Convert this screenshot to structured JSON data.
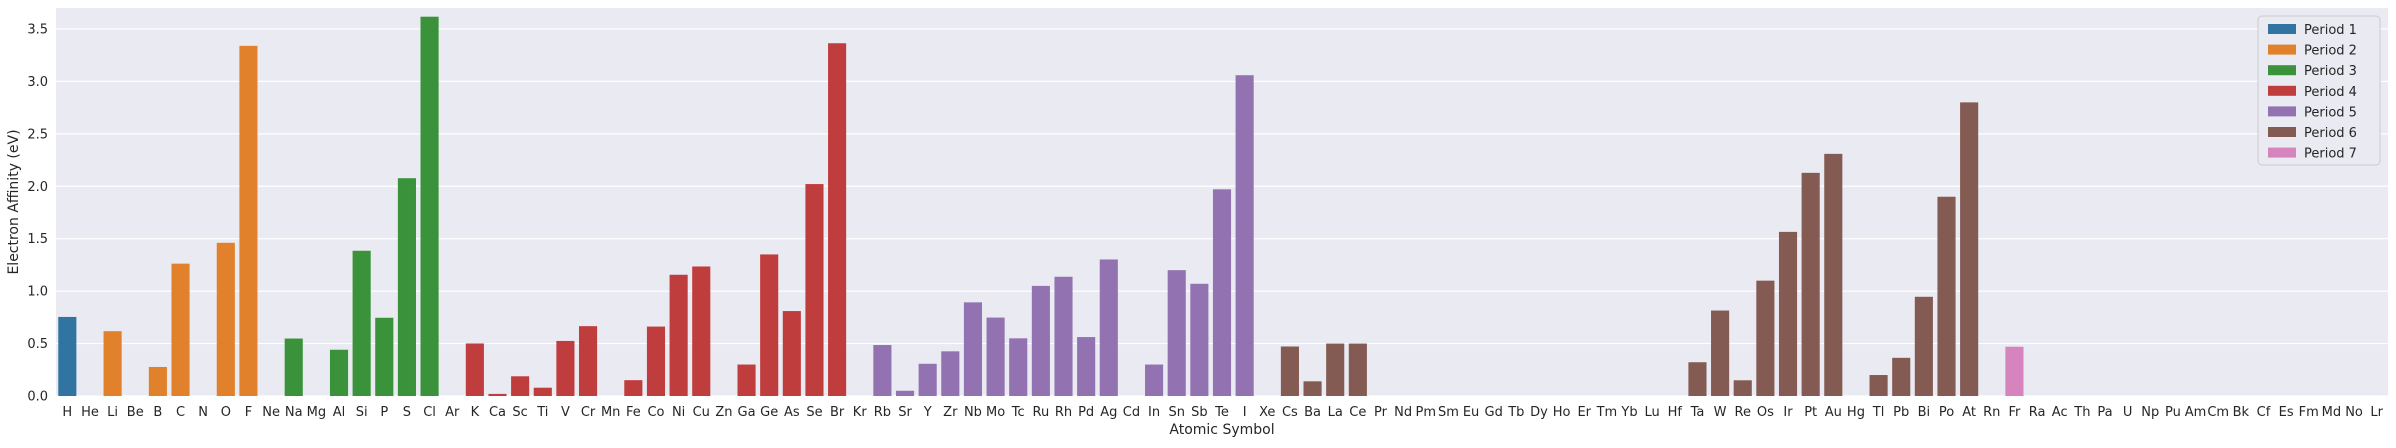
{
  "chart_data": {
    "type": "bar",
    "title": "",
    "xlabel": "Atomic Symbol",
    "ylabel": "Electron Affinity (eV)",
    "ylim": [
      0,
      3.7
    ],
    "yticks": [
      "0.0",
      "0.5",
      "1.0",
      "1.5",
      "2.0",
      "2.5",
      "3.0",
      "3.5"
    ],
    "grid": true,
    "legend_position": "top-right",
    "categories": [
      "H",
      "He",
      "Li",
      "Be",
      "B",
      "C",
      "N",
      "O",
      "F",
      "Ne",
      "Na",
      "Mg",
      "Al",
      "Si",
      "P",
      "S",
      "Cl",
      "Ar",
      "K",
      "Ca",
      "Sc",
      "Ti",
      "V",
      "Cr",
      "Mn",
      "Fe",
      "Co",
      "Ni",
      "Cu",
      "Zn",
      "Ga",
      "Ge",
      "As",
      "Se",
      "Br",
      "Kr",
      "Rb",
      "Sr",
      "Y",
      "Zr",
      "Nb",
      "Mo",
      "Tc",
      "Ru",
      "Rh",
      "Pd",
      "Ag",
      "Cd",
      "In",
      "Sn",
      "Sb",
      "Te",
      "I",
      "Xe",
      "Cs",
      "Ba",
      "La",
      "Ce",
      "Pr",
      "Nd",
      "Pm",
      "Sm",
      "Eu",
      "Gd",
      "Tb",
      "Dy",
      "Ho",
      "Er",
      "Tm",
      "Yb",
      "Lu",
      "Hf",
      "Ta",
      "W",
      "Re",
      "Os",
      "Ir",
      "Pt",
      "Au",
      "Hg",
      "Tl",
      "Pb",
      "Bi",
      "Po",
      "At",
      "Rn",
      "Fr",
      "Ra",
      "Ac",
      "Th",
      "Pa",
      "U",
      "Np",
      "Pu",
      "Am",
      "Cm",
      "Bk",
      "Cf",
      "Es",
      "Fm",
      "Md",
      "No",
      "Lr"
    ],
    "values": [
      0.754,
      0,
      0.618,
      0,
      0.277,
      1.262,
      0,
      1.461,
      3.339,
      0,
      0.548,
      0,
      0.441,
      1.385,
      0.746,
      2.077,
      3.617,
      0,
      0.501,
      0.02,
      0.188,
      0.079,
      0.525,
      0.666,
      0,
      0.151,
      0.662,
      1.156,
      1.235,
      0,
      0.3,
      1.35,
      0.81,
      2.021,
      3.364,
      0,
      0.486,
      0.05,
      0.307,
      0.426,
      0.893,
      0.748,
      0.55,
      1.05,
      1.137,
      0.562,
      1.302,
      0,
      0.3,
      1.2,
      1.07,
      1.971,
      3.059,
      0,
      0.472,
      0.14,
      0.5,
      0.5,
      0,
      0,
      0,
      0,
      0,
      0,
      0,
      0,
      0,
      0,
      0,
      0,
      0,
      0,
      0.322,
      0.815,
      0.15,
      1.1,
      1.565,
      2.128,
      2.309,
      0,
      0.2,
      0.364,
      0.946,
      1.9,
      2.8,
      0,
      0.47,
      0,
      0,
      0,
      0,
      0,
      0,
      0,
      0,
      0,
      0,
      0,
      0,
      0,
      0,
      0,
      0
    ],
    "periods": [
      1,
      1,
      2,
      2,
      2,
      2,
      2,
      2,
      2,
      2,
      3,
      3,
      3,
      3,
      3,
      3,
      3,
      3,
      4,
      4,
      4,
      4,
      4,
      4,
      4,
      4,
      4,
      4,
      4,
      4,
      4,
      4,
      4,
      4,
      4,
      4,
      5,
      5,
      5,
      5,
      5,
      5,
      5,
      5,
      5,
      5,
      5,
      5,
      5,
      5,
      5,
      5,
      5,
      5,
      6,
      6,
      6,
      6,
      6,
      6,
      6,
      6,
      6,
      6,
      6,
      6,
      6,
      6,
      6,
      6,
      6,
      6,
      6,
      6,
      6,
      6,
      6,
      6,
      6,
      6,
      6,
      6,
      6,
      6,
      6,
      6,
      7,
      7,
      7,
      7,
      7,
      7,
      7,
      7,
      7,
      7,
      7,
      7,
      7,
      7,
      7,
      7,
      7
    ],
    "series": [
      {
        "name": "Period 1",
        "color": "#3274a1"
      },
      {
        "name": "Period 2",
        "color": "#e1812c"
      },
      {
        "name": "Period 3",
        "color": "#3a923a"
      },
      {
        "name": "Period 4",
        "color": "#c03d3e"
      },
      {
        "name": "Period 5",
        "color": "#9372b2"
      },
      {
        "name": "Period 6",
        "color": "#845b53"
      },
      {
        "name": "Period 7",
        "color": "#d684bd"
      }
    ]
  }
}
